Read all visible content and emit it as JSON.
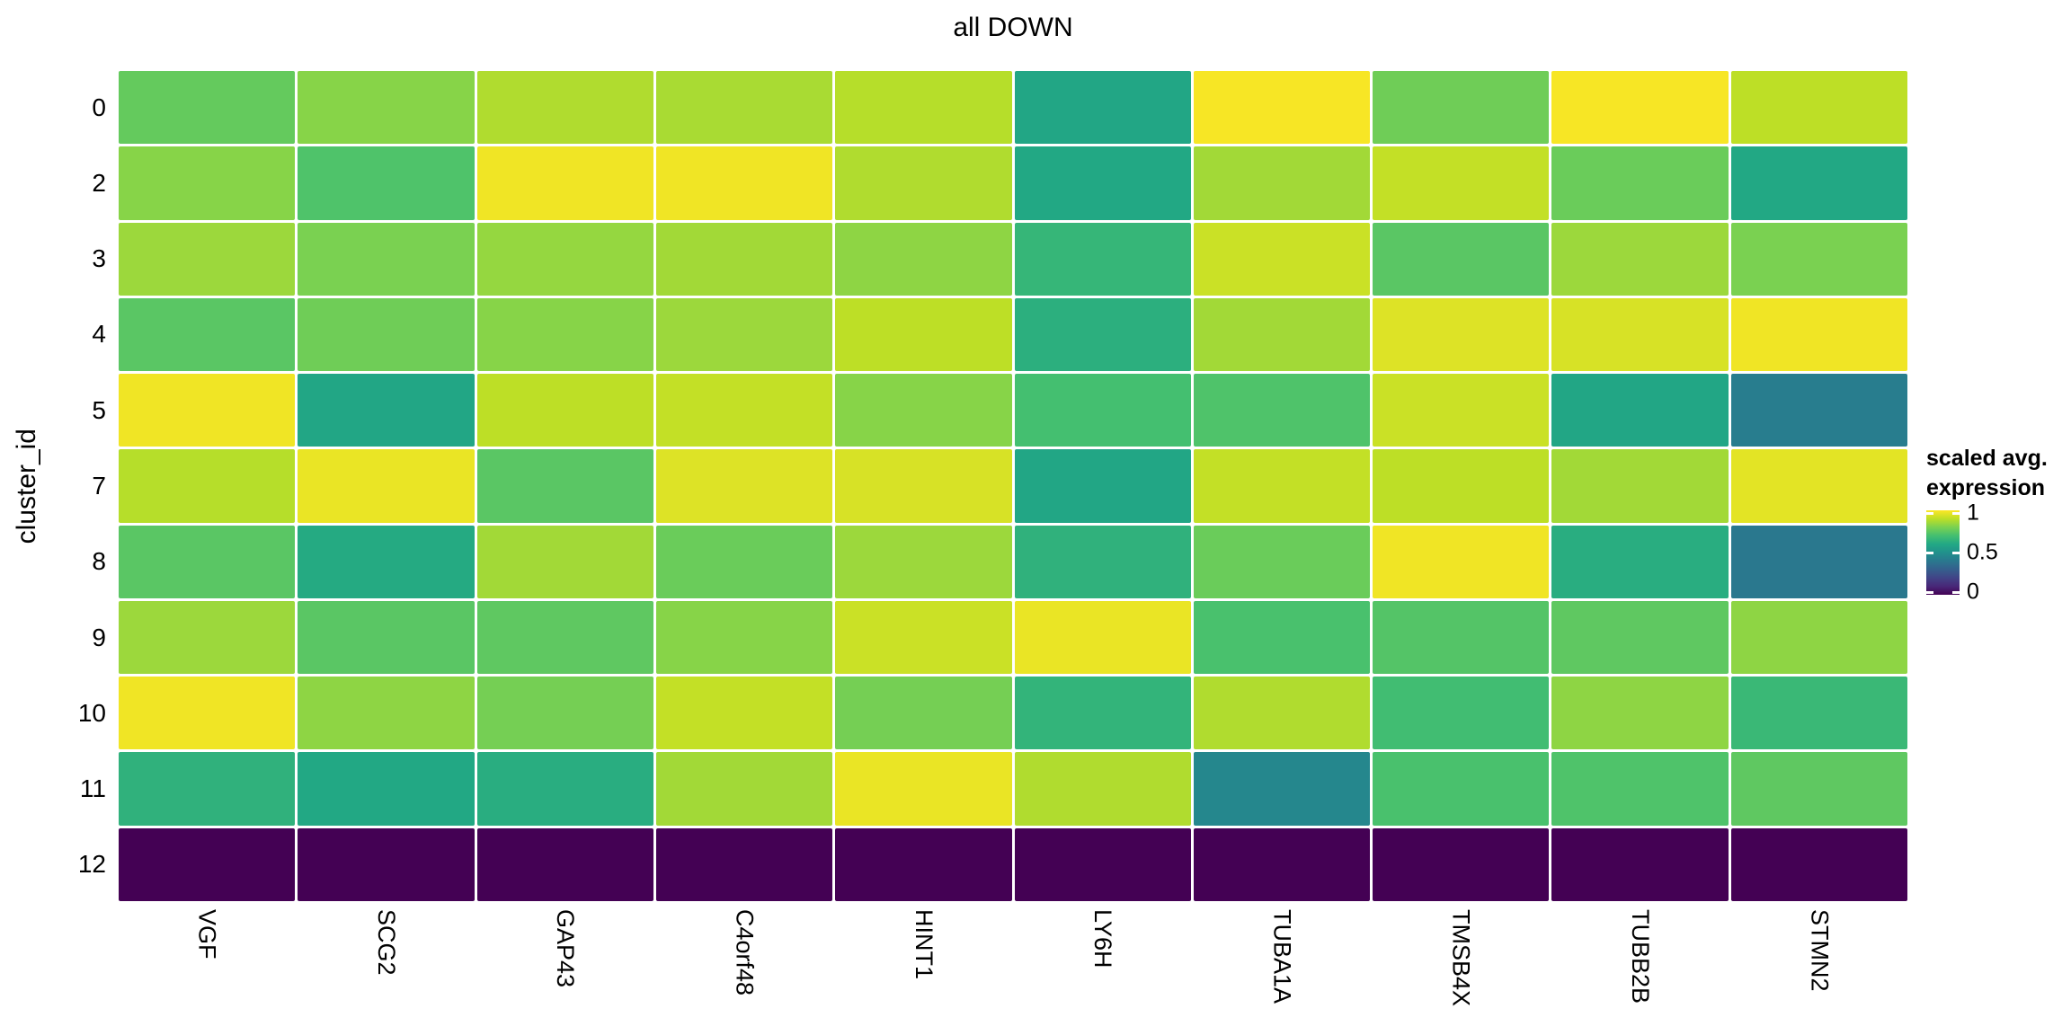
{
  "title": "all DOWN",
  "axes": {
    "y_title": "cluster_id",
    "x_labels": [
      "VGF",
      "SCG2",
      "GAP43",
      "C4orf48",
      "HINT1",
      "LY6H",
      "TUBA1A",
      "TMSB4X",
      "TUBB2B",
      "STMN2"
    ],
    "y_labels": [
      "0",
      "2",
      "3",
      "4",
      "5",
      "7",
      "8",
      "9",
      "10",
      "11",
      "12"
    ]
  },
  "legend": {
    "title_line1": "scaled avg.",
    "title_line2": "expression",
    "tick_labels": [
      "1",
      "0.5",
      "0"
    ],
    "tick_values": [
      1,
      0.5,
      0
    ]
  },
  "colors": {
    "background": "#FFFFFF",
    "text": "#000000",
    "cell_gap": "#FFFFFF",
    "viridis_stops": [
      "#440154",
      "#482878",
      "#414487",
      "#355F8D",
      "#2A788E",
      "#21918C",
      "#22A884",
      "#44BF70",
      "#7AD151",
      "#BDDF26",
      "#FDE725"
    ]
  },
  "chart_data": {
    "type": "heatmap",
    "title": "all DOWN",
    "xlabel": "",
    "ylabel": "cluster_id",
    "colormap": "viridis",
    "value_range": [
      0,
      1
    ],
    "legend_title": "scaled avg. expression",
    "legend_ticks": [
      1,
      0.5,
      0
    ],
    "x_categories": [
      "VGF",
      "SCG2",
      "GAP43",
      "C4orf48",
      "HINT1",
      "LY6H",
      "TUBA1A",
      "TMSB4X",
      "TUBB2B",
      "STMN2"
    ],
    "y_categories": [
      "0",
      "2",
      "3",
      "4",
      "5",
      "7",
      "8",
      "9",
      "10",
      "11",
      "12"
    ],
    "values": [
      [
        0.76,
        0.82,
        0.88,
        0.87,
        0.89,
        0.59,
        0.99,
        0.78,
        0.99,
        0.9
      ],
      [
        0.82,
        0.72,
        0.98,
        0.98,
        0.88,
        0.6,
        0.86,
        0.91,
        0.77,
        0.6
      ],
      [
        0.85,
        0.8,
        0.84,
        0.86,
        0.83,
        0.66,
        0.92,
        0.74,
        0.85,
        0.8
      ],
      [
        0.74,
        0.78,
        0.82,
        0.85,
        0.9,
        0.63,
        0.86,
        0.95,
        0.94,
        0.98
      ],
      [
        0.98,
        0.59,
        0.9,
        0.91,
        0.82,
        0.7,
        0.72,
        0.92,
        0.59,
        0.42
      ],
      [
        0.89,
        0.97,
        0.74,
        0.95,
        0.94,
        0.59,
        0.91,
        0.9,
        0.86,
        0.96
      ],
      [
        0.74,
        0.61,
        0.86,
        0.77,
        0.85,
        0.64,
        0.77,
        0.98,
        0.62,
        0.4
      ],
      [
        0.85,
        0.74,
        0.75,
        0.82,
        0.92,
        0.97,
        0.71,
        0.73,
        0.75,
        0.83
      ],
      [
        0.98,
        0.83,
        0.79,
        0.91,
        0.79,
        0.65,
        0.88,
        0.69,
        0.83,
        0.67
      ],
      [
        0.64,
        0.6,
        0.62,
        0.86,
        0.97,
        0.88,
        0.46,
        0.71,
        0.72,
        0.75
      ],
      [
        0.0,
        0.0,
        0.0,
        0.0,
        0.0,
        0.0,
        0.0,
        0.0,
        0.0,
        0.0
      ]
    ]
  }
}
